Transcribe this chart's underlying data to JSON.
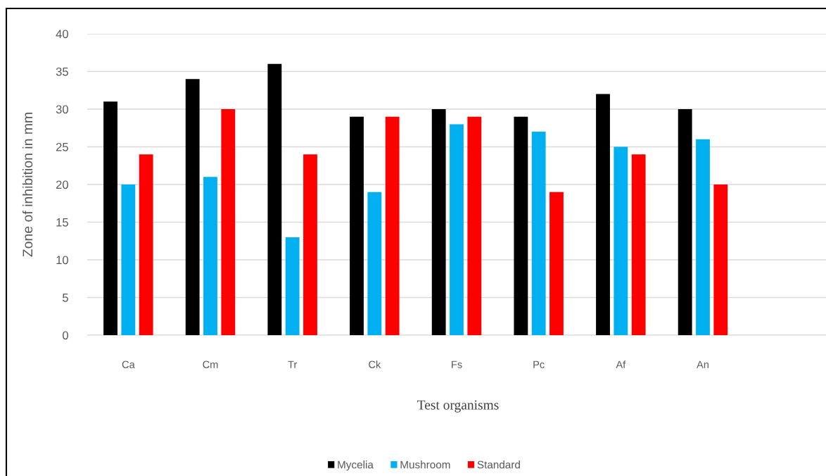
{
  "chart_data": {
    "type": "bar",
    "xlabel": "Test organisms",
    "ylabel": "Zone of inhibition in mm",
    "categories": [
      "Ca",
      "Cm",
      "Tr",
      "Ck",
      "Fs",
      "Pc",
      "Af",
      "An",
      null
    ],
    "series": [
      {
        "name": "Mycelia",
        "color": "#000000",
        "values": [
          31,
          34,
          36,
          29,
          30,
          29,
          32,
          30,
          null
        ]
      },
      {
        "name": "Mushroom",
        "color": "#00b0f0",
        "values": [
          20,
          21,
          13,
          19,
          28,
          27,
          25,
          26,
          null
        ]
      },
      {
        "name": "Standard",
        "color": "#ff0000",
        "values": [
          24,
          30,
          24,
          29,
          29,
          19,
          24,
          20,
          null
        ]
      }
    ],
    "ylim": [
      0,
      40
    ],
    "yticks": [
      0,
      5,
      10,
      15,
      20,
      25,
      30,
      35,
      40
    ],
    "grid": "y",
    "legend": "bottom"
  }
}
